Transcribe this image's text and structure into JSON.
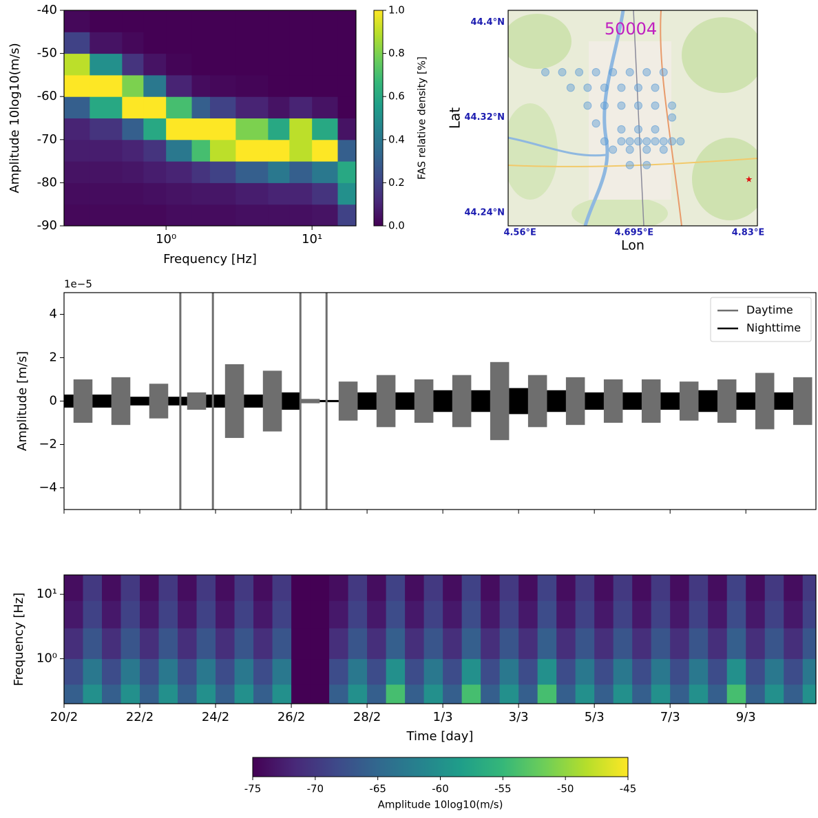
{
  "chart_data": [
    {
      "type": "heatmap",
      "xlabel": "Frequency [Hz]",
      "ylabel": "Amplitude 10log10(m/s)",
      "xscale": "log",
      "xlim": [
        0.2,
        20
      ],
      "ylim": [
        -90,
        -40
      ],
      "xticks": [
        {
          "value": 1,
          "label": "10⁰"
        },
        {
          "value": 10,
          "label": "10¹"
        }
      ],
      "yticks": [
        -90,
        -80,
        -70,
        -60,
        -50,
        -40
      ],
      "xedges": [
        0.2,
        0.3,
        0.5,
        0.7,
        1,
        1.5,
        2,
        3,
        5,
        7,
        10,
        15,
        20
      ],
      "yedges": [
        -90,
        -85,
        -80,
        -75,
        -70,
        -65,
        -60,
        -55,
        -50,
        -45,
        -40
      ],
      "z": [
        [
          0.02,
          0.03,
          0.05,
          0.08,
          0.1,
          0.3,
          1,
          0.9,
          0.2,
          0.02
        ],
        [
          0.02,
          0.03,
          0.05,
          0.08,
          0.15,
          0.6,
          1,
          0.5,
          0.05,
          0
        ],
        [
          0.02,
          0.03,
          0.06,
          0.1,
          0.3,
          1,
          0.8,
          0.15,
          0.02,
          0
        ],
        [
          0.02,
          0.04,
          0.08,
          0.15,
          0.6,
          1,
          0.4,
          0.05,
          0,
          0
        ],
        [
          0.03,
          0.05,
          0.1,
          0.4,
          1,
          0.7,
          0.1,
          0.01,
          0,
          0
        ],
        [
          0.03,
          0.06,
          0.15,
          0.7,
          1,
          0.3,
          0.03,
          0,
          0,
          0
        ],
        [
          0.03,
          0.06,
          0.2,
          0.9,
          1,
          0.2,
          0.02,
          0,
          0,
          0
        ],
        [
          0.04,
          0.08,
          0.3,
          1,
          0.8,
          0.1,
          0.01,
          0,
          0,
          0
        ],
        [
          0.04,
          0.1,
          0.4,
          1,
          0.6,
          0.05,
          0,
          0,
          0,
          0
        ],
        [
          0.04,
          0.1,
          0.3,
          0.9,
          0.9,
          0.1,
          0,
          0,
          0,
          0
        ],
        [
          0.05,
          0.15,
          0.4,
          1,
          0.6,
          0.05,
          0,
          0,
          0,
          0
        ],
        [
          0.2,
          0.5,
          0.6,
          0.3,
          0.05,
          0,
          0,
          0,
          0,
          0
        ]
      ],
      "colormap": "viridis",
      "clim": [
        0,
        1
      ],
      "colorbar_label": "FAS relative density [%]",
      "colorbar_ticks": [
        {
          "value": 0,
          "label": "0.0"
        },
        {
          "value": 0.2,
          "label": "0.2"
        },
        {
          "value": 0.4,
          "label": "0.4"
        },
        {
          "value": 0.6,
          "label": "0.6"
        },
        {
          "value": 0.8,
          "label": "0.8"
        },
        {
          "value": 1,
          "label": "1.0"
        }
      ]
    },
    {
      "type": "map",
      "title": "50004",
      "xlabel": "Lon",
      "ylabel": "Lat",
      "xlim": [
        4.546,
        4.841
      ],
      "ylim": [
        44.229,
        44.41
      ],
      "xticks": [
        {
          "value": 4.56,
          "label": "4.56°E"
        },
        {
          "value": 4.695,
          "label": "4.695°E"
        },
        {
          "value": 4.83,
          "label": "4.83°E"
        }
      ],
      "yticks": [
        {
          "value": 44.24,
          "label": "44.24°N"
        },
        {
          "value": 44.32,
          "label": "44.32°N"
        },
        {
          "value": 44.4,
          "label": "44.4°N"
        }
      ],
      "color": "#5b9bd5",
      "x": [
        4.59,
        4.61,
        4.63,
        4.65,
        4.67,
        4.69,
        4.71,
        4.73,
        4.62,
        4.64,
        4.66,
        4.68,
        4.7,
        4.72,
        4.64,
        4.66,
        4.68,
        4.7,
        4.72,
        4.74,
        4.66,
        4.68,
        4.69,
        4.7,
        4.71,
        4.72,
        4.73,
        4.74,
        4.75,
        4.67,
        4.69,
        4.71,
        4.73,
        4.68,
        4.7,
        4.72,
        4.69,
        4.71,
        4.74,
        4.65
      ],
      "y": [
        44.358,
        44.358,
        44.358,
        44.358,
        44.358,
        44.358,
        44.358,
        44.358,
        44.345,
        44.345,
        44.345,
        44.345,
        44.345,
        44.345,
        44.33,
        44.33,
        44.33,
        44.33,
        44.33,
        44.33,
        44.3,
        44.3,
        44.3,
        44.3,
        44.3,
        44.3,
        44.3,
        44.3,
        44.3,
        44.293,
        44.293,
        44.293,
        44.293,
        44.31,
        44.31,
        44.31,
        44.28,
        44.28,
        44.32,
        44.315
      ],
      "star": {
        "x": 4.831,
        "y": 44.268,
        "color": "#e01010"
      }
    },
    {
      "type": "waveform",
      "ylabel": "Amplitude [m/s]",
      "offset_text": "1e−5",
      "xlim": [
        0,
        19.85
      ],
      "ylim": [
        -5e-05,
        5e-05
      ],
      "xticks": [
        0,
        2,
        4,
        6,
        8,
        10,
        12,
        14,
        16,
        18
      ],
      "yticks": [
        {
          "value": -4e-05,
          "label": "−4"
        },
        {
          "value": -2e-05,
          "label": "−2"
        },
        0,
        {
          "value": 2e-05,
          "label": "2"
        },
        {
          "value": 4e-05,
          "label": "4"
        }
      ],
      "legend": "upper right",
      "series": [
        {
          "name": "Daytime",
          "color": "#6e6e6e",
          "x": [
            0.5,
            1.5,
            2.5,
            3.5,
            4.5,
            5.5,
            6.5,
            7.5,
            8.5,
            9.5,
            10.5,
            11.5,
            12.5,
            13.5,
            14.5,
            15.5,
            16.5,
            17.5,
            18.5,
            19.5
          ],
          "values": [
            1e-05,
            1.1e-05,
            8e-06,
            4e-06,
            1.7e-05,
            1.4e-05,
            1e-06,
            9e-06,
            1.2e-05,
            1e-05,
            1.2e-05,
            1.8e-05,
            1.2e-05,
            1.1e-05,
            1e-05,
            1e-05,
            9e-06,
            1e-05,
            1.3e-05,
            1.1e-05
          ]
        },
        {
          "name": "Nighttime",
          "color": "#000000",
          "x": [
            0,
            1,
            2,
            3,
            4,
            5,
            6,
            7,
            8,
            9,
            10,
            11,
            12,
            13,
            14,
            15,
            16,
            17,
            18,
            19
          ],
          "values": [
            3e-06,
            3e-06,
            2e-06,
            2e-06,
            3e-06,
            3e-06,
            4e-06,
            5e-07,
            4e-06,
            4e-06,
            5e-06,
            5e-06,
            6e-06,
            5e-06,
            4e-06,
            4e-06,
            4e-06,
            5e-06,
            4e-06,
            4e-06
          ]
        }
      ],
      "spikes_x": [
        3.07,
        3.93,
        6.24,
        6.93
      ]
    },
    {
      "type": "spectrogram",
      "xlabel": "Time [day]",
      "ylabel": "Frequency [Hz]",
      "yscale": "log",
      "xlim": [
        0,
        19.85
      ],
      "ylim": [
        0.2,
        20
      ],
      "xticks": [
        {
          "value": 0,
          "label": "20/2"
        },
        {
          "value": 2,
          "label": "22/2"
        },
        {
          "value": 4,
          "label": "24/2"
        },
        {
          "value": 6,
          "label": "26/2"
        },
        {
          "value": 8,
          "label": "28/2"
        },
        {
          "value": 10,
          "label": "1/3"
        },
        {
          "value": 12,
          "label": "3/3"
        },
        {
          "value": 14,
          "label": "5/3"
        },
        {
          "value": 16,
          "label": "7/3"
        },
        {
          "value": 18,
          "label": "9/3"
        }
      ],
      "yticks": [
        {
          "value": 1,
          "label": "10⁰"
        },
        {
          "value": 10,
          "label": "10¹"
        }
      ],
      "xedges": [
        0,
        0.5,
        1,
        1.5,
        2,
        2.5,
        3,
        3.5,
        4,
        4.5,
        5,
        5.5,
        6,
        6.5,
        7,
        7.5,
        8,
        8.5,
        9,
        9.5,
        10,
        10.5,
        11,
        11.5,
        12,
        12.5,
        13,
        13.5,
        14,
        14.5,
        15,
        15.5,
        16,
        16.5,
        17,
        17.5,
        18,
        18.5,
        19,
        19.5,
        20
      ],
      "yedges": [
        0.2,
        0.4,
        1,
        3,
        8,
        20
      ],
      "z": [
        [
          -66,
          -68,
          -71,
          -73,
          -74
        ],
        [
          -60,
          -63,
          -67,
          -69,
          -70
        ],
        [
          -66,
          -68,
          -71,
          -73,
          -74
        ],
        [
          -60,
          -63,
          -67,
          -69,
          -70
        ],
        [
          -66,
          -68,
          -71,
          -73,
          -74
        ],
        [
          -60,
          -63,
          -67,
          -69,
          -70
        ],
        [
          -66,
          -68,
          -71,
          -73,
          -74
        ],
        [
          -60,
          -63,
          -67,
          -69,
          -70
        ],
        [
          -66,
          -68,
          -71,
          -73,
          -74
        ],
        [
          -60,
          -63,
          -67,
          -69,
          -70
        ],
        [
          -66,
          -68,
          -71,
          -73,
          -74
        ],
        [
          -60,
          -63,
          -67,
          -69,
          -70
        ],
        [
          -75,
          -75,
          -75,
          -75,
          -75
        ],
        [
          -75,
          -75,
          -75,
          -75,
          -75
        ],
        [
          -66,
          -68,
          -71,
          -73,
          -74
        ],
        [
          -60,
          -63,
          -67,
          -69,
          -70
        ],
        [
          -66,
          -68,
          -71,
          -73,
          -74
        ],
        [
          -54,
          -60,
          -66,
          -68,
          -69
        ],
        [
          -66,
          -68,
          -71,
          -73,
          -74
        ],
        [
          -60,
          -63,
          -67,
          -69,
          -70
        ],
        [
          -66,
          -68,
          -71,
          -73,
          -74
        ],
        [
          -54,
          -60,
          -66,
          -68,
          -69
        ],
        [
          -66,
          -68,
          -71,
          -73,
          -74
        ],
        [
          -60,
          -63,
          -67,
          -69,
          -70
        ],
        [
          -66,
          -68,
          -71,
          -73,
          -74
        ],
        [
          -54,
          -60,
          -66,
          -68,
          -69
        ],
        [
          -66,
          -68,
          -71,
          -73,
          -74
        ],
        [
          -60,
          -63,
          -67,
          -69,
          -70
        ],
        [
          -66,
          -68,
          -71,
          -73,
          -74
        ],
        [
          -60,
          -63,
          -67,
          -69,
          -70
        ],
        [
          -66,
          -68,
          -71,
          -73,
          -74
        ],
        [
          -60,
          -63,
          -67,
          -69,
          -70
        ],
        [
          -66,
          -68,
          -71,
          -73,
          -74
        ],
        [
          -60,
          -63,
          -67,
          -69,
          -70
        ],
        [
          -66,
          -68,
          -71,
          -73,
          -74
        ],
        [
          -54,
          -60,
          -66,
          -68,
          -69
        ],
        [
          -66,
          -68,
          -71,
          -73,
          -74
        ],
        [
          -60,
          -63,
          -67,
          -69,
          -70
        ],
        [
          -66,
          -68,
          -71,
          -73,
          -74
        ],
        [
          -60,
          -63,
          -67,
          -69,
          -70
        ]
      ],
      "colormap": "viridis",
      "clim": [
        -75,
        -45
      ],
      "colorbar_label": "Amplitude 10log10(m/s)",
      "colorbar_ticks": [
        -75,
        -70,
        -65,
        -60,
        -55,
        -50,
        -45
      ]
    }
  ]
}
